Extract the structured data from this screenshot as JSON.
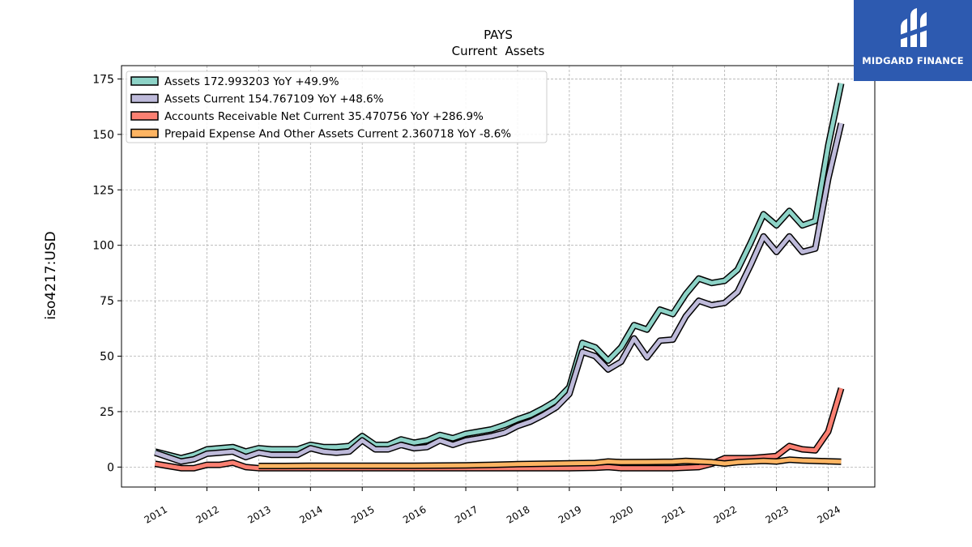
{
  "chart_data": {
    "type": "line",
    "title": "PAYS",
    "subtitle": "Current  Assets",
    "ylabel": "iso4217:USD",
    "xlabel": "",
    "ylim": [
      -9,
      181
    ],
    "xlim": [
      2010.35,
      2024.9
    ],
    "yticks": [
      0,
      25,
      50,
      75,
      100,
      125,
      150,
      175
    ],
    "xticks": [
      "2011",
      "2012",
      "2013",
      "2014",
      "2015",
      "2016",
      "2017",
      "2018",
      "2019",
      "2020",
      "2021",
      "2022",
      "2023",
      "2024"
    ],
    "grid": true,
    "legend_position": "top-left",
    "series": [
      {
        "name": "Assets  172.993203 YoY +49.9%",
        "color": "#8dd3c7",
        "points": [
          [
            2011.0,
            7
          ],
          [
            2011.25,
            5.5
          ],
          [
            2011.5,
            4
          ],
          [
            2011.75,
            5.5
          ],
          [
            2012.0,
            8
          ],
          [
            2012.25,
            8.5
          ],
          [
            2012.5,
            9
          ],
          [
            2012.75,
            7
          ],
          [
            2013.0,
            8.5
          ],
          [
            2013.25,
            8
          ],
          [
            2013.5,
            8
          ],
          [
            2013.75,
            8
          ],
          [
            2014.0,
            10
          ],
          [
            2014.25,
            9
          ],
          [
            2014.5,
            9
          ],
          [
            2014.75,
            9.5
          ],
          [
            2015.0,
            14
          ],
          [
            2015.25,
            10
          ],
          [
            2015.5,
            10
          ],
          [
            2015.75,
            12.5
          ],
          [
            2016.0,
            11
          ],
          [
            2016.25,
            12
          ],
          [
            2016.5,
            14.5
          ],
          [
            2016.75,
            13
          ],
          [
            2017.0,
            15
          ],
          [
            2017.25,
            16
          ],
          [
            2017.5,
            17
          ],
          [
            2017.75,
            19
          ],
          [
            2018.0,
            21.5
          ],
          [
            2018.25,
            23.5
          ],
          [
            2018.5,
            26.5
          ],
          [
            2018.75,
            30
          ],
          [
            2019.0,
            36
          ],
          [
            2019.25,
            56
          ],
          [
            2019.5,
            54
          ],
          [
            2019.75,
            48
          ],
          [
            2020.0,
            54
          ],
          [
            2020.25,
            64
          ],
          [
            2020.5,
            62
          ],
          [
            2020.75,
            71
          ],
          [
            2021.0,
            69
          ],
          [
            2021.25,
            78
          ],
          [
            2021.5,
            85
          ],
          [
            2021.75,
            83
          ],
          [
            2022.0,
            84
          ],
          [
            2022.25,
            89
          ],
          [
            2022.5,
            101
          ],
          [
            2022.75,
            114
          ],
          [
            2023.0,
            109
          ],
          [
            2023.25,
            115.5
          ],
          [
            2023.5,
            109
          ],
          [
            2023.75,
            111
          ],
          [
            2024.0,
            145
          ],
          [
            2024.25,
            173
          ]
        ]
      },
      {
        "name": "Assets Current  154.767109 YoY +48.6%",
        "color": "#bebada",
        "points": [
          [
            2011.0,
            6.5
          ],
          [
            2011.25,
            4.5
          ],
          [
            2011.5,
            2.5
          ],
          [
            2011.75,
            3.5
          ],
          [
            2012.0,
            6
          ],
          [
            2012.25,
            6.5
          ],
          [
            2012.5,
            7
          ],
          [
            2012.75,
            4.5
          ],
          [
            2013.0,
            6.5
          ],
          [
            2013.25,
            5.5
          ],
          [
            2013.5,
            5.5
          ],
          [
            2013.75,
            5.5
          ],
          [
            2014.0,
            8.5
          ],
          [
            2014.25,
            7
          ],
          [
            2014.5,
            6.5
          ],
          [
            2014.75,
            7
          ],
          [
            2015.0,
            12
          ],
          [
            2015.25,
            8
          ],
          [
            2015.5,
            8
          ],
          [
            2015.75,
            10
          ],
          [
            2016.0,
            8.5
          ],
          [
            2016.25,
            9
          ],
          [
            2016.5,
            12
          ],
          [
            2016.75,
            10
          ],
          [
            2017.0,
            12
          ],
          [
            2017.25,
            13
          ],
          [
            2017.5,
            14
          ],
          [
            2017.75,
            15.5
          ],
          [
            2018.0,
            18.5
          ],
          [
            2018.25,
            20.5
          ],
          [
            2018.5,
            23.5
          ],
          [
            2018.75,
            27
          ],
          [
            2019.0,
            33
          ],
          [
            2019.25,
            52
          ],
          [
            2019.5,
            50
          ],
          [
            2019.75,
            44
          ],
          [
            2020.0,
            47.5
          ],
          [
            2020.25,
            58
          ],
          [
            2020.5,
            49.5
          ],
          [
            2020.75,
            57
          ],
          [
            2021.0,
            57.5
          ],
          [
            2021.25,
            68
          ],
          [
            2021.5,
            75
          ],
          [
            2021.75,
            73
          ],
          [
            2022.0,
            74
          ],
          [
            2022.25,
            79
          ],
          [
            2022.5,
            91
          ],
          [
            2022.75,
            104
          ],
          [
            2023.0,
            97
          ],
          [
            2023.25,
            104
          ],
          [
            2023.5,
            97
          ],
          [
            2023.75,
            98.5
          ],
          [
            2024.0,
            130
          ],
          [
            2024.25,
            155
          ]
        ]
      },
      {
        "name": "Accounts Receivable Net Current  35.470756 YoY +286.9%",
        "color": "#fb8072",
        "points": [
          [
            2011.0,
            1.5
          ],
          [
            2011.25,
            0.5
          ],
          [
            2011.5,
            -0.5
          ],
          [
            2011.75,
            -0.5
          ],
          [
            2012.0,
            1
          ],
          [
            2012.25,
            1
          ],
          [
            2012.5,
            2
          ],
          [
            2012.75,
            0
          ],
          [
            2013.0,
            -0.5
          ],
          [
            2013.5,
            -0.5
          ],
          [
            2014.0,
            -0.5
          ],
          [
            2014.5,
            -0.5
          ],
          [
            2015.0,
            -0.5
          ],
          [
            2015.5,
            -0.5
          ],
          [
            2016.0,
            -0.5
          ],
          [
            2016.5,
            -0.5
          ],
          [
            2017.0,
            -0.5
          ],
          [
            2017.5,
            -0.5
          ],
          [
            2018.0,
            -0.5
          ],
          [
            2018.5,
            -0.5
          ],
          [
            2019.0,
            -0.5
          ],
          [
            2019.5,
            -0.3
          ],
          [
            2019.75,
            0
          ],
          [
            2020.0,
            -0.5
          ],
          [
            2020.5,
            -0.5
          ],
          [
            2021.0,
            -0.5
          ],
          [
            2021.5,
            0
          ],
          [
            2021.75,
            1.5
          ],
          [
            2022.0,
            4
          ],
          [
            2022.25,
            4
          ],
          [
            2022.5,
            4
          ],
          [
            2022.75,
            4.5
          ],
          [
            2023.0,
            5
          ],
          [
            2023.25,
            9.5
          ],
          [
            2023.5,
            8
          ],
          [
            2023.75,
            7.5
          ],
          [
            2024.0,
            16
          ],
          [
            2024.25,
            35.5
          ]
        ]
      },
      {
        "name": "Prepaid Expense And Other Assets Current  2.360718 YoY -8.6%",
        "color": "#fdb462",
        "points": [
          [
            2013.0,
            0.5
          ],
          [
            2013.5,
            0.5
          ],
          [
            2014.0,
            0.6
          ],
          [
            2014.5,
            0.6
          ],
          [
            2015.0,
            0.6
          ],
          [
            2015.5,
            0.6
          ],
          [
            2016.0,
            0.6
          ],
          [
            2016.5,
            0.7
          ],
          [
            2017.0,
            0.8
          ],
          [
            2017.5,
            1
          ],
          [
            2018.0,
            1.3
          ],
          [
            2018.5,
            1.5
          ],
          [
            2019.0,
            1.7
          ],
          [
            2019.5,
            1.9
          ],
          [
            2019.75,
            2.5
          ],
          [
            2020.0,
            2.2
          ],
          [
            2020.5,
            2.3
          ],
          [
            2021.0,
            2.4
          ],
          [
            2021.25,
            2.8
          ],
          [
            2021.5,
            2.5
          ],
          [
            2021.75,
            2.2
          ],
          [
            2022.0,
            1.6
          ],
          [
            2022.25,
            2.2
          ],
          [
            2022.5,
            2.5
          ],
          [
            2022.75,
            2.8
          ],
          [
            2023.0,
            2.5
          ],
          [
            2023.25,
            3.3
          ],
          [
            2023.5,
            3
          ],
          [
            2023.75,
            2.8
          ],
          [
            2024.0,
            2.6
          ],
          [
            2024.25,
            2.4
          ]
        ]
      }
    ]
  },
  "logo": {
    "text": "MIDGARD FINANCE"
  }
}
